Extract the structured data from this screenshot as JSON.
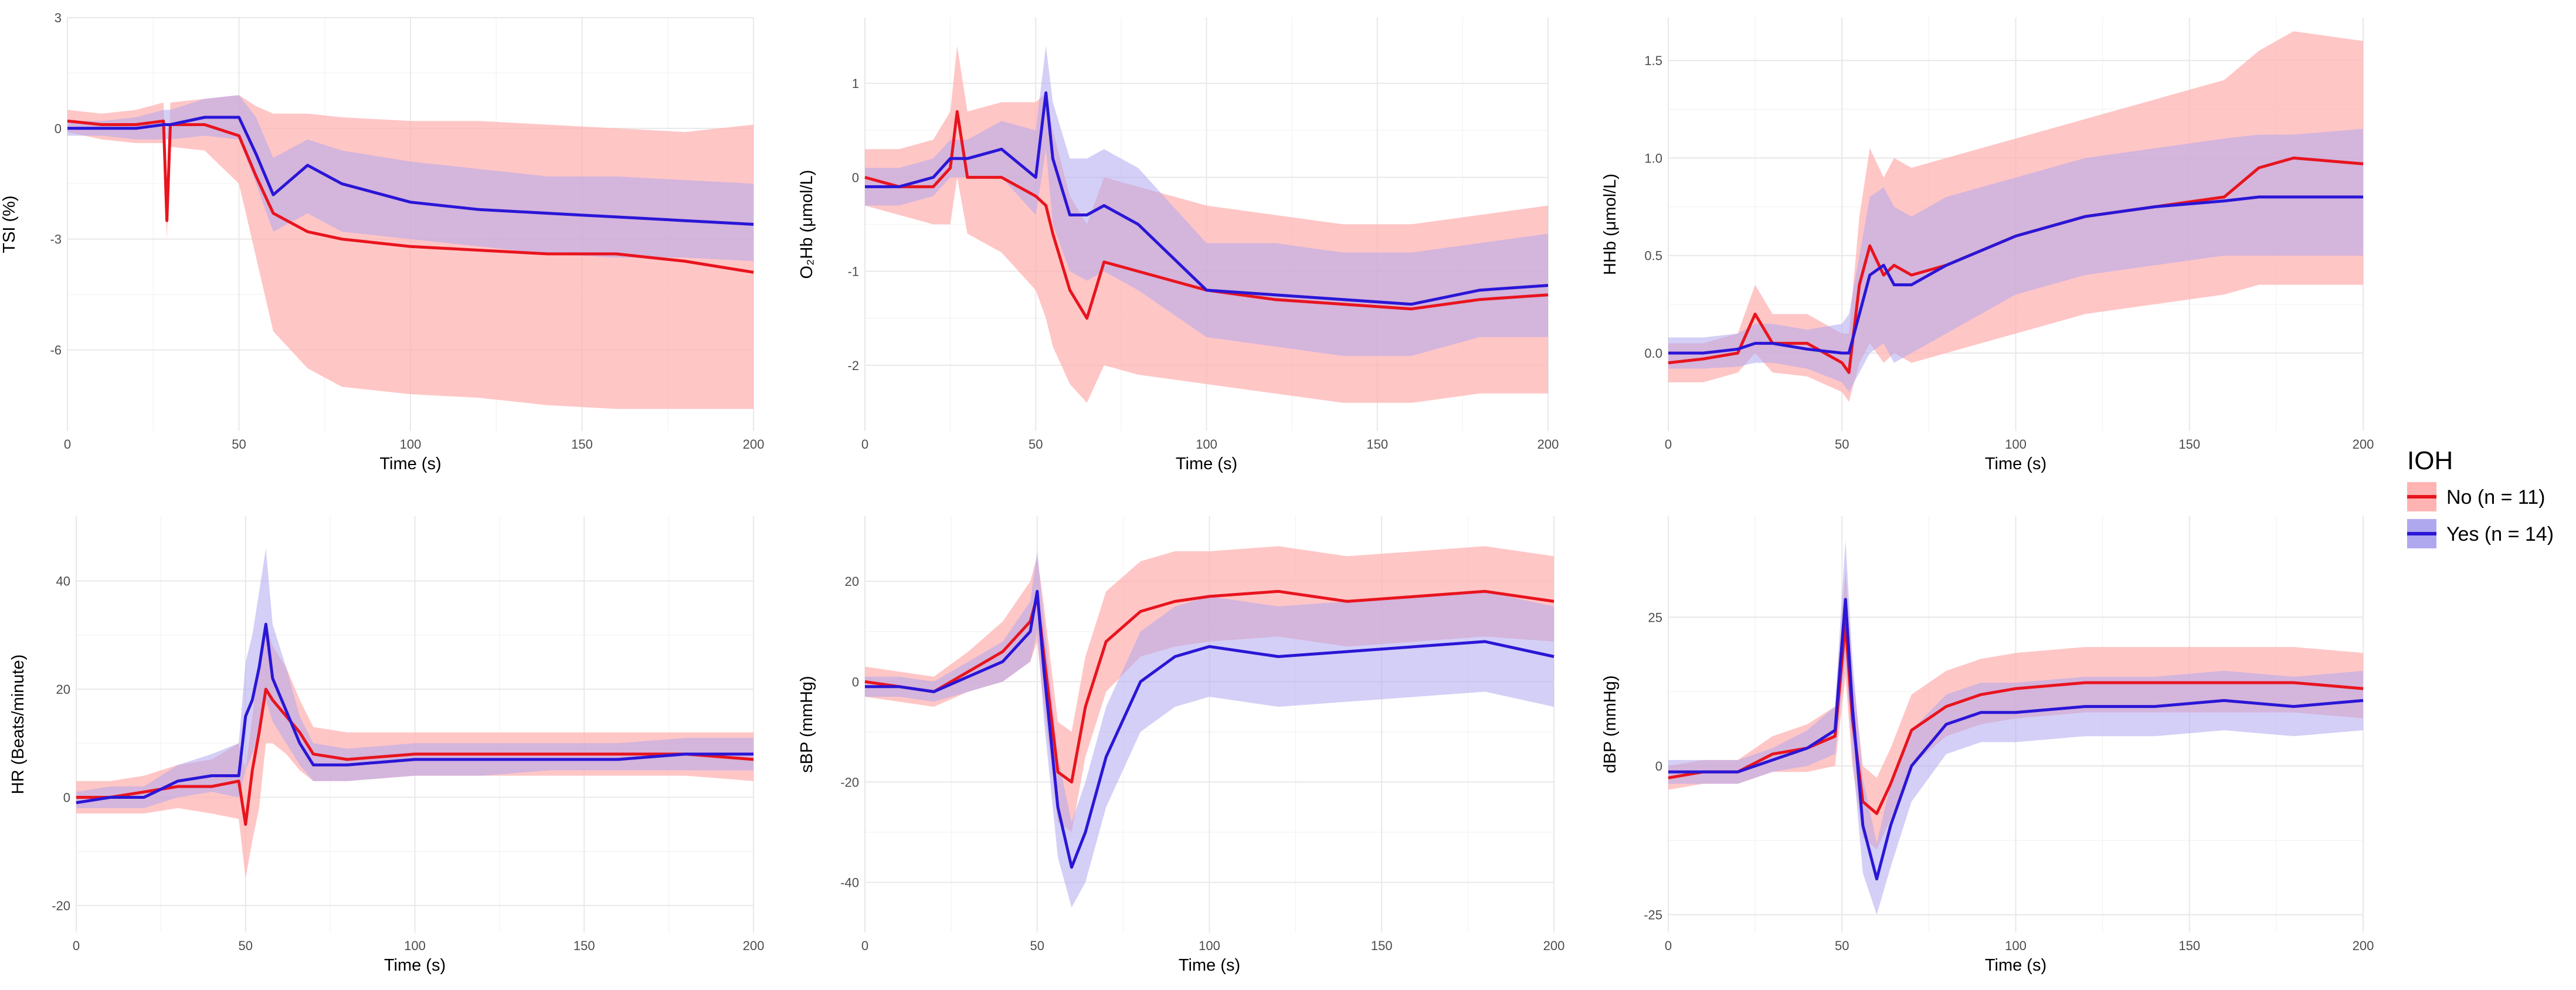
{
  "colors": {
    "no_line": "#e8141e",
    "no_band": "#ffb3b3",
    "yes_line": "#2a16d6",
    "yes_band": "#b0a8ee",
    "grid": "#e8e8e8",
    "background": "#ffffff"
  },
  "legend": {
    "title": "IOH",
    "entries": [
      {
        "label": "No (n = 11)",
        "color": "#e8141e"
      },
      {
        "label": "Yes (n = 14)",
        "color": "#2a16d6"
      }
    ],
    "placement": "right"
  },
  "chart_data": [
    {
      "type": "line",
      "xlabel": "Time (s)",
      "ylabel": "TSI (%)",
      "xlim": [
        0,
        200
      ],
      "ylim": [
        -8.2,
        3
      ],
      "xticks": [
        "0",
        "50",
        "100",
        "150",
        "200"
      ],
      "yticks": [
        "-6",
        "-3",
        "0",
        "3"
      ],
      "ytick_values": [
        -6,
        -3,
        0,
        3
      ],
      "grid": true,
      "x": [
        0,
        10,
        20,
        28,
        29,
        30,
        40,
        50,
        55,
        60,
        70,
        80,
        100,
        120,
        140,
        160,
        180,
        200
      ],
      "series": [
        {
          "name": "No (n = 11)",
          "y": [
            0.2,
            0.1,
            0.1,
            0.2,
            -2.5,
            0.1,
            0.1,
            -0.2,
            -1.3,
            -2.3,
            -2.8,
            -3.0,
            -3.2,
            -3.3,
            -3.4,
            -3.4,
            -3.6,
            -3.9
          ],
          "lower": [
            -0.1,
            -0.3,
            -0.4,
            -0.4,
            -3.0,
            -0.5,
            -0.6,
            -1.5,
            -3.5,
            -5.5,
            -6.5,
            -7.0,
            -7.2,
            -7.3,
            -7.5,
            -7.6,
            -7.6,
            -7.6
          ],
          "upper": [
            0.5,
            0.4,
            0.5,
            0.7,
            -1.8,
            0.7,
            0.8,
            0.9,
            0.6,
            0.4,
            0.4,
            0.3,
            0.2,
            0.2,
            0.1,
            0.0,
            -0.1,
            0.1
          ]
        },
        {
          "name": "Yes (n = 14)",
          "y": [
            0.0,
            0.0,
            0.0,
            0.1,
            0.1,
            0.1,
            0.3,
            0.3,
            -0.7,
            -1.8,
            -1.0,
            -1.5,
            -2.0,
            -2.2,
            -2.3,
            -2.4,
            -2.5,
            -2.6
          ],
          "lower": [
            -0.2,
            -0.2,
            -0.3,
            -0.3,
            -0.3,
            -0.3,
            -0.2,
            -0.3,
            -1.5,
            -2.8,
            -2.3,
            -2.8,
            -3.0,
            -3.2,
            -3.4,
            -3.5,
            -3.5,
            -3.6
          ],
          "upper": [
            0.2,
            0.2,
            0.3,
            0.5,
            0.5,
            0.5,
            0.8,
            0.9,
            0.3,
            -0.8,
            -0.3,
            -0.6,
            -0.9,
            -1.1,
            -1.3,
            -1.3,
            -1.4,
            -1.5
          ]
        }
      ]
    },
    {
      "type": "line",
      "xlabel": "Time (s)",
      "ylabel": "O₂Hb (μmol/L)",
      "xlim": [
        0,
        200
      ],
      "ylim": [
        -2.7,
        1.7
      ],
      "xticks": [
        "0",
        "50",
        "100",
        "150",
        "200"
      ],
      "yticks": [
        "-2",
        "-1",
        "0",
        "1"
      ],
      "ytick_values": [
        -2,
        -1,
        0,
        1
      ],
      "grid": true,
      "x": [
        0,
        10,
        20,
        25,
        27,
        30,
        40,
        50,
        53,
        55,
        60,
        65,
        70,
        80,
        100,
        120,
        140,
        160,
        180,
        200
      ],
      "series": [
        {
          "name": "No (n = 11)",
          "y": [
            0.0,
            -0.1,
            -0.1,
            0.1,
            0.7,
            0.0,
            0.0,
            -0.2,
            -0.3,
            -0.6,
            -1.2,
            -1.5,
            -0.9,
            -1.0,
            -1.2,
            -1.3,
            -1.35,
            -1.4,
            -1.3,
            -1.25
          ],
          "lower": [
            -0.3,
            -0.4,
            -0.5,
            -0.5,
            0.0,
            -0.6,
            -0.8,
            -1.2,
            -1.5,
            -1.8,
            -2.2,
            -2.4,
            -2.0,
            -2.1,
            -2.2,
            -2.3,
            -2.4,
            -2.4,
            -2.3,
            -2.3
          ],
          "upper": [
            0.3,
            0.3,
            0.4,
            0.7,
            1.4,
            0.7,
            0.8,
            0.8,
            0.9,
            0.5,
            -0.2,
            -0.5,
            0.0,
            -0.1,
            -0.3,
            -0.4,
            -0.5,
            -0.5,
            -0.4,
            -0.3
          ]
        },
        {
          "name": "Yes (n = 14)",
          "y": [
            -0.1,
            -0.1,
            0.0,
            0.2,
            0.2,
            0.2,
            0.3,
            0.0,
            0.9,
            0.2,
            -0.4,
            -0.4,
            -0.3,
            -0.5,
            -1.2,
            -1.25,
            -1.3,
            -1.35,
            -1.2,
            -1.15
          ],
          "lower": [
            -0.3,
            -0.3,
            -0.2,
            0.0,
            0.0,
            0.0,
            0.0,
            -0.4,
            0.3,
            -0.5,
            -1.0,
            -1.1,
            -1.0,
            -1.2,
            -1.7,
            -1.8,
            -1.9,
            -1.9,
            -1.7,
            -1.7
          ],
          "upper": [
            0.1,
            0.1,
            0.2,
            0.4,
            0.4,
            0.4,
            0.6,
            0.5,
            1.4,
            0.8,
            0.2,
            0.2,
            0.3,
            0.1,
            -0.7,
            -0.7,
            -0.8,
            -0.8,
            -0.7,
            -0.6
          ]
        }
      ]
    },
    {
      "type": "line",
      "xlabel": "Time (s)",
      "ylabel": "HHb (μmol/L)",
      "xlim": [
        0,
        200
      ],
      "ylim": [
        -0.4,
        1.72
      ],
      "xticks": [
        "0",
        "50",
        "100",
        "150",
        "200"
      ],
      "yticks": [
        "0.0",
        "0.5",
        "1.0",
        "1.5"
      ],
      "ytick_values": [
        0.0,
        0.5,
        1.0,
        1.5
      ],
      "grid": true,
      "x": [
        0,
        10,
        20,
        25,
        30,
        40,
        50,
        52,
        55,
        58,
        62,
        65,
        70,
        80,
        100,
        120,
        140,
        160,
        170,
        180,
        200
      ],
      "series": [
        {
          "name": "No (n = 11)",
          "y": [
            -0.05,
            -0.03,
            0.0,
            0.2,
            0.05,
            0.05,
            -0.05,
            -0.1,
            0.35,
            0.55,
            0.4,
            0.45,
            0.4,
            0.45,
            0.6,
            0.7,
            0.75,
            0.8,
            0.95,
            1.0,
            0.97
          ],
          "lower": [
            -0.15,
            -0.15,
            -0.1,
            0.0,
            -0.1,
            -0.12,
            -0.2,
            -0.25,
            -0.05,
            0.05,
            -0.05,
            0.0,
            -0.05,
            0.0,
            0.1,
            0.2,
            0.25,
            0.3,
            0.35,
            0.35,
            0.35
          ],
          "upper": [
            0.05,
            0.05,
            0.1,
            0.35,
            0.2,
            0.2,
            0.1,
            0.1,
            0.7,
            1.05,
            0.9,
            1.0,
            0.95,
            1.0,
            1.1,
            1.2,
            1.3,
            1.4,
            1.55,
            1.65,
            1.6
          ]
        },
        {
          "name": "Yes (n = 14)",
          "y": [
            0.0,
            0.0,
            0.02,
            0.05,
            0.05,
            0.02,
            0.0,
            0.0,
            0.2,
            0.4,
            0.45,
            0.35,
            0.35,
            0.45,
            0.6,
            0.7,
            0.75,
            0.78,
            0.8,
            0.8,
            0.8
          ],
          "lower": [
            -0.08,
            -0.08,
            -0.07,
            -0.05,
            -0.05,
            -0.08,
            -0.15,
            -0.2,
            -0.1,
            0.0,
            0.05,
            -0.05,
            0.0,
            0.1,
            0.3,
            0.4,
            0.45,
            0.5,
            0.5,
            0.5,
            0.5
          ],
          "upper": [
            0.08,
            0.08,
            0.1,
            0.15,
            0.15,
            0.12,
            0.15,
            0.2,
            0.5,
            0.8,
            0.85,
            0.75,
            0.7,
            0.8,
            0.9,
            1.0,
            1.05,
            1.1,
            1.12,
            1.12,
            1.15
          ]
        }
      ]
    },
    {
      "type": "line",
      "xlabel": "Time (s)",
      "ylabel": "HR (Beats/minute)",
      "xlim": [
        0,
        200
      ],
      "ylim": [
        -25,
        52
      ],
      "xticks": [
        "0",
        "50",
        "100",
        "150",
        "200"
      ],
      "yticks": [
        "-20",
        "0",
        "20",
        "40"
      ],
      "ytick_values": [
        -20,
        0,
        20,
        40
      ],
      "grid": true,
      "x": [
        0,
        10,
        20,
        30,
        40,
        48,
        50,
        52,
        54,
        56,
        58,
        62,
        66,
        70,
        80,
        100,
        120,
        140,
        160,
        180,
        200
      ],
      "series": [
        {
          "name": "No (n = 11)",
          "y": [
            0,
            0,
            1,
            2,
            2,
            3,
            -5,
            5,
            12,
            20,
            18,
            15,
            12,
            8,
            7,
            8,
            8,
            8,
            8,
            8,
            7
          ],
          "lower": [
            -3,
            -3,
            -3,
            -2,
            -3,
            -4,
            -15,
            -8,
            -2,
            10,
            10,
            8,
            5,
            3,
            3,
            4,
            4,
            4,
            4,
            4,
            3
          ],
          "upper": [
            3,
            3,
            4,
            6,
            7,
            10,
            5,
            15,
            25,
            32,
            28,
            24,
            18,
            13,
            12,
            12,
            12,
            12,
            12,
            12,
            12
          ]
        },
        {
          "name": "Yes (n = 14)",
          "y": [
            -1,
            0,
            0,
            3,
            4,
            4,
            15,
            18,
            24,
            32,
            22,
            16,
            10,
            6,
            6,
            7,
            7,
            7,
            7,
            8,
            8
          ],
          "lower": [
            -2,
            -2,
            -2,
            0,
            1,
            0,
            5,
            8,
            12,
            18,
            14,
            10,
            6,
            3,
            3,
            4,
            4,
            5,
            5,
            5,
            5
          ],
          "upper": [
            1,
            2,
            2,
            6,
            8,
            10,
            25,
            30,
            38,
            46,
            32,
            24,
            15,
            10,
            9,
            10,
            10,
            10,
            10,
            11,
            11
          ]
        }
      ]
    },
    {
      "type": "line",
      "xlabel": "Time (s)",
      "ylabel": "sBP (mmHg)",
      "xlim": [
        0,
        200
      ],
      "ylim": [
        -50,
        33
      ],
      "xticks": [
        "0",
        "50",
        "100",
        "150",
        "200"
      ],
      "yticks": [
        "-40",
        "-20",
        "0",
        "20"
      ],
      "ytick_values": [
        -40,
        -20,
        0,
        20
      ],
      "grid": true,
      "x": [
        0,
        10,
        20,
        30,
        40,
        48,
        50,
        52,
        56,
        60,
        64,
        70,
        80,
        90,
        100,
        120,
        140,
        160,
        180,
        200
      ],
      "series": [
        {
          "name": "No (n = 11)",
          "y": [
            0,
            -1,
            -2,
            2,
            6,
            12,
            17,
            5,
            -18,
            -20,
            -5,
            8,
            14,
            16,
            17,
            18,
            16,
            17,
            18,
            16
          ],
          "lower": [
            -3,
            -4,
            -5,
            -2,
            0,
            4,
            8,
            -5,
            -28,
            -30,
            -15,
            -2,
            5,
            7,
            8,
            9,
            7,
            8,
            9,
            8
          ],
          "upper": [
            3,
            2,
            1,
            6,
            12,
            20,
            25,
            15,
            -8,
            -10,
            5,
            18,
            24,
            26,
            26,
            27,
            25,
            26,
            27,
            25
          ]
        },
        {
          "name": "Yes (n = 14)",
          "y": [
            -1,
            -1,
            -2,
            1,
            4,
            10,
            18,
            2,
            -25,
            -37,
            -30,
            -15,
            0,
            5,
            7,
            5,
            6,
            7,
            8,
            5
          ],
          "lower": [
            -3,
            -3,
            -4,
            -2,
            0,
            4,
            10,
            -8,
            -35,
            -45,
            -40,
            -25,
            -10,
            -5,
            -3,
            -5,
            -4,
            -3,
            -2,
            -5
          ],
          "upper": [
            1,
            1,
            0,
            4,
            8,
            16,
            26,
            12,
            -15,
            -28,
            -20,
            -5,
            10,
            15,
            17,
            15,
            16,
            17,
            18,
            15
          ]
        }
      ]
    },
    {
      "type": "line",
      "xlabel": "Time (s)",
      "ylabel": "dBP (mmHg)",
      "xlim": [
        0,
        200
      ],
      "ylim": [
        -28,
        42
      ],
      "xticks": [
        "0",
        "50",
        "100",
        "150",
        "200"
      ],
      "yticks": [
        "-25",
        "0",
        "25"
      ],
      "ytick_values": [
        -25,
        0,
        25
      ],
      "grid": true,
      "x": [
        0,
        10,
        20,
        30,
        40,
        48,
        51,
        53,
        56,
        60,
        64,
        70,
        80,
        90,
        100,
        120,
        140,
        160,
        180,
        200
      ],
      "series": [
        {
          "name": "No (n = 11)",
          "y": [
            -2,
            -1,
            -1,
            2,
            3,
            5,
            24,
            8,
            -6,
            -8,
            -3,
            6,
            10,
            12,
            13,
            14,
            14,
            14,
            14,
            13
          ],
          "lower": [
            -4,
            -3,
            -3,
            -1,
            -1,
            0,
            15,
            0,
            -12,
            -14,
            -9,
            0,
            5,
            7,
            8,
            9,
            9,
            9,
            9,
            8
          ],
          "upper": [
            0,
            1,
            1,
            5,
            7,
            10,
            33,
            16,
            0,
            -2,
            3,
            12,
            16,
            18,
            19,
            20,
            20,
            20,
            20,
            19
          ]
        },
        {
          "name": "Yes (n = 14)",
          "y": [
            -1,
            -1,
            -1,
            1,
            3,
            6,
            28,
            10,
            -10,
            -19,
            -10,
            0,
            7,
            9,
            9,
            10,
            10,
            11,
            10,
            11
          ],
          "lower": [
            -3,
            -3,
            -3,
            -1,
            0,
            2,
            18,
            2,
            -18,
            -25,
            -17,
            -6,
            2,
            4,
            4,
            5,
            5,
            6,
            5,
            6
          ],
          "upper": [
            1,
            1,
            1,
            3,
            6,
            10,
            38,
            18,
            -2,
            -13,
            -3,
            6,
            12,
            14,
            14,
            15,
            15,
            16,
            15,
            16
          ]
        }
      ]
    }
  ]
}
